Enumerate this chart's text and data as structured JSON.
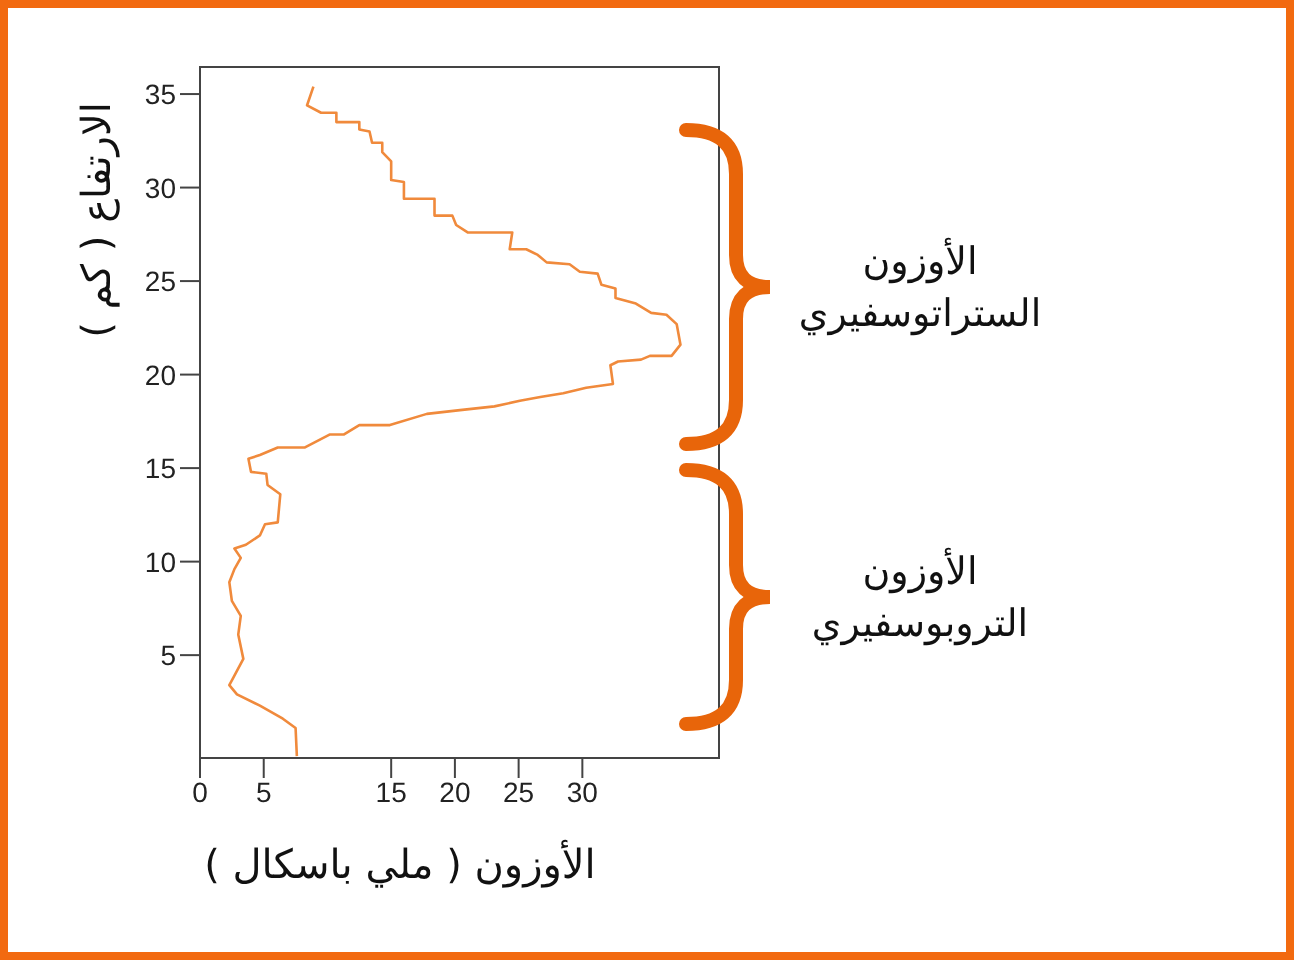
{
  "chart_data": {
    "type": "line",
    "xlabel": "الأوزون ( ملي باسكال )",
    "ylabel": "الارتفاع ( كم )",
    "xlim": [
      0,
      40.8
    ],
    "xticks": [
      0,
      5,
      15,
      20,
      25,
      30
    ],
    "ylim": [
      -0.5,
      36.5
    ],
    "yticks": [
      5,
      10,
      15,
      20,
      25,
      30,
      35
    ],
    "grid": false,
    "legend": false,
    "marker": "none",
    "line_style": "solid",
    "annotations": [
      "الأوزون الستراتوسفيري",
      "الأوزون التروبوسفيري"
    ],
    "series": [
      {
        "color": "#f08a3c",
        "x": [
          7.6,
          7.5,
          6.5,
          4.7,
          2.9,
          2.3,
          2.7,
          3.4,
          3.0,
          3.2,
          2.5,
          2.3,
          2.7,
          3.2,
          2.7,
          3.6,
          4.7,
          5.1,
          6.1,
          6.3,
          5.3,
          5.2,
          4.0,
          3.8,
          4.7,
          6.1,
          8.2,
          10.2,
          11.3,
          12.5,
          14.9,
          17.8,
          20.4,
          23.1,
          25.1,
          26.7,
          28.5,
          30.3,
          32.4,
          32.2,
          32.8,
          34.6,
          35.3,
          37.0,
          37.7,
          37.4,
          36.6,
          35.4,
          34.2,
          32.6,
          32.6,
          31.5,
          31.2,
          29.8,
          29.0,
          27.2,
          26.5,
          25.6,
          24.3,
          24.5,
          21.0,
          20.1,
          19.8,
          18.4,
          18.4,
          16.0,
          16.0,
          15.0,
          15.0,
          14.3,
          14.3,
          13.5,
          13.3,
          12.5,
          12.5,
          10.7,
          10.7,
          9.5,
          8.4,
          8.9
        ],
        "values": [
          -0.4,
          1.1,
          1.6,
          2.3,
          2.9,
          3.4,
          3.9,
          4.8,
          6.1,
          7.1,
          7.9,
          8.9,
          9.6,
          10.2,
          10.7,
          10.9,
          11.4,
          12.0,
          12.1,
          13.6,
          14.1,
          14.7,
          14.8,
          15.5,
          15.7,
          16.1,
          16.1,
          16.8,
          16.8,
          17.3,
          17.3,
          17.9,
          18.1,
          18.3,
          18.6,
          18.8,
          19.0,
          19.3,
          19.5,
          20.5,
          20.7,
          20.8,
          21.0,
          21.0,
          21.6,
          22.7,
          23.2,
          23.3,
          23.8,
          24.1,
          24.6,
          24.8,
          25.4,
          25.5,
          25.9,
          26.0,
          26.4,
          26.7,
          26.7,
          27.6,
          27.6,
          28.0,
          28.5,
          28.5,
          29.4,
          29.4,
          30.3,
          30.4,
          31.4,
          31.9,
          32.4,
          32.4,
          33.0,
          33.1,
          33.5,
          33.5,
          34.0,
          34.0,
          34.4,
          35.4
        ]
      }
    ]
  }
}
